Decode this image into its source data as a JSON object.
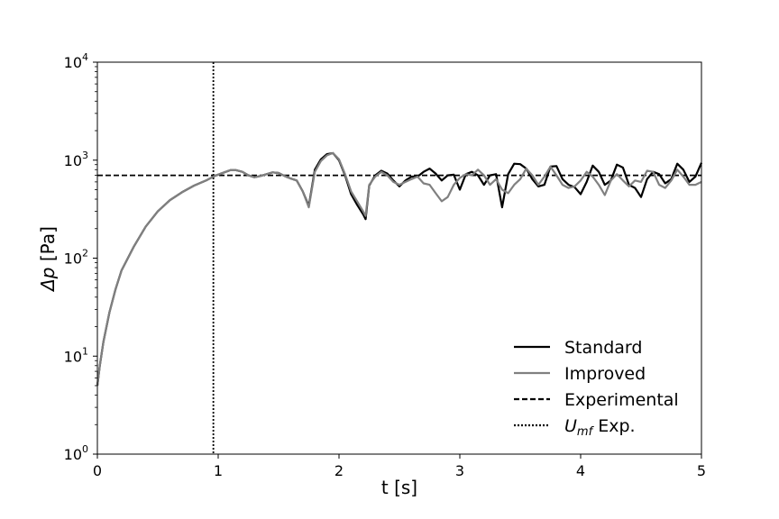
{
  "chart_data": {
    "type": "line",
    "title": "",
    "xlabel": "t [s]",
    "ylabel_prefix": "Δp",
    "ylabel_suffix": " [Pa]",
    "xlim": [
      0,
      5
    ],
    "ylim": [
      1,
      10000
    ],
    "yscale": "log",
    "grid": false,
    "legend_position": "lower-right",
    "x_ticks": [
      {
        "value": 0,
        "label": "0"
      },
      {
        "value": 1,
        "label": "1"
      },
      {
        "value": 2,
        "label": "2"
      },
      {
        "value": 3,
        "label": "3"
      },
      {
        "value": 4,
        "label": "4"
      },
      {
        "value": 5,
        "label": "5"
      }
    ],
    "y_ticks": [
      {
        "value": 1,
        "base": "10",
        "exp": "0"
      },
      {
        "value": 10,
        "base": "10",
        "exp": "1"
      },
      {
        "value": 100,
        "base": "10",
        "exp": "2"
      },
      {
        "value": 1000,
        "base": "10",
        "exp": "3"
      },
      {
        "value": 10000,
        "base": "10",
        "exp": "4"
      }
    ],
    "series": [
      {
        "name": "Standard",
        "style": "solid",
        "color": "#000000",
        "x": [
          0,
          0.02,
          0.05,
          0.1,
          0.15,
          0.2,
          0.3,
          0.4,
          0.5,
          0.6,
          0.7,
          0.8,
          0.9,
          0.97,
          1.05,
          1.1,
          1.15,
          1.2,
          1.25,
          1.3,
          1.35,
          1.4,
          1.45,
          1.5,
          1.55,
          1.6,
          1.65,
          1.7,
          1.75,
          1.8,
          1.85,
          1.9,
          1.95,
          2.0,
          2.05,
          2.1,
          2.15,
          2.2,
          2.22,
          2.25,
          2.3,
          2.35,
          2.4,
          2.45,
          2.5,
          2.55,
          2.6,
          2.65,
          2.7,
          2.75,
          2.8,
          2.85,
          2.9,
          2.95,
          3.0,
          3.05,
          3.1,
          3.15,
          3.2,
          3.25,
          3.3,
          3.35,
          3.4,
          3.45,
          3.5,
          3.55,
          3.6,
          3.65,
          3.7,
          3.75,
          3.8,
          3.85,
          3.9,
          3.95,
          4.0,
          4.05,
          4.1,
          4.15,
          4.2,
          4.25,
          4.3,
          4.35,
          4.4,
          4.45,
          4.5,
          4.55,
          4.6,
          4.65,
          4.7,
          4.75,
          4.8,
          4.85,
          4.9,
          4.95,
          5.0
        ],
        "y": [
          5,
          8,
          14,
          28,
          48,
          75,
          130,
          210,
          300,
          390,
          470,
          550,
          620,
          690,
          750,
          790,
          790,
          760,
          700,
          670,
          690,
          720,
          750,
          740,
          690,
          650,
          620,
          480,
          340,
          800,
          1020,
          1150,
          1180,
          1000,
          700,
          450,
          350,
          280,
          250,
          550,
          700,
          780,
          730,
          620,
          540,
          620,
          680,
          680,
          760,
          820,
          730,
          620,
          700,
          710,
          500,
          720,
          760,
          700,
          560,
          700,
          720,
          330,
          720,
          920,
          910,
          820,
          640,
          540,
          560,
          860,
          870,
          640,
          560,
          530,
          450,
          600,
          880,
          760,
          560,
          620,
          900,
          840,
          560,
          520,
          420,
          640,
          760,
          720,
          580,
          640,
          920,
          800,
          600,
          680,
          940
        ]
      },
      {
        "name": "Improved",
        "style": "solid",
        "color": "#808080",
        "x": [
          0,
          0.02,
          0.05,
          0.1,
          0.15,
          0.2,
          0.3,
          0.4,
          0.5,
          0.6,
          0.7,
          0.8,
          0.9,
          0.97,
          1.05,
          1.1,
          1.15,
          1.2,
          1.25,
          1.3,
          1.35,
          1.4,
          1.45,
          1.5,
          1.55,
          1.6,
          1.65,
          1.7,
          1.75,
          1.8,
          1.85,
          1.9,
          1.95,
          2.0,
          2.05,
          2.1,
          2.15,
          2.2,
          2.22,
          2.25,
          2.3,
          2.35,
          2.4,
          2.45,
          2.5,
          2.55,
          2.6,
          2.65,
          2.7,
          2.75,
          2.8,
          2.85,
          2.9,
          2.95,
          3.0,
          3.05,
          3.1,
          3.15,
          3.2,
          3.25,
          3.3,
          3.35,
          3.4,
          3.45,
          3.5,
          3.55,
          3.6,
          3.65,
          3.7,
          3.75,
          3.8,
          3.85,
          3.9,
          3.95,
          4.0,
          4.05,
          4.1,
          4.15,
          4.2,
          4.25,
          4.3,
          4.35,
          4.4,
          4.45,
          4.5,
          4.55,
          4.6,
          4.65,
          4.7,
          4.75,
          4.8,
          4.85,
          4.9,
          4.95,
          5.0
        ],
        "y": [
          5,
          8,
          14,
          28,
          48,
          75,
          130,
          210,
          300,
          390,
          470,
          550,
          620,
          690,
          750,
          790,
          790,
          760,
          700,
          670,
          690,
          720,
          750,
          740,
          690,
          650,
          620,
          480,
          330,
          760,
          980,
          1120,
          1180,
          1020,
          720,
          480,
          380,
          300,
          270,
          560,
          680,
          760,
          700,
          600,
          560,
          600,
          640,
          680,
          580,
          560,
          460,
          380,
          420,
          560,
          660,
          720,
          700,
          800,
          700,
          560,
          640,
          500,
          460,
          560,
          640,
          820,
          700,
          560,
          680,
          860,
          700,
          560,
          520,
          540,
          620,
          760,
          680,
          560,
          440,
          620,
          720,
          620,
          540,
          620,
          600,
          780,
          760,
          560,
          520,
          620,
          800,
          680,
          560,
          560,
          600
        ]
      }
    ],
    "reference_lines": [
      {
        "name": "Experimental",
        "orientation": "horizontal",
        "style": "dashed",
        "value": 700
      },
      {
        "name": "Umf Exp.",
        "orientation": "vertical",
        "style": "dotted",
        "value": 0.96
      }
    ],
    "legend": [
      {
        "label": "Standard",
        "style": "solid",
        "color": "#000000"
      },
      {
        "label": "Improved",
        "style": "solid",
        "color": "#808080"
      },
      {
        "label": "Experimental",
        "style": "dashed",
        "color": "#000000"
      },
      {
        "label_math": "U",
        "label_sub": "mf",
        "label_rest": " Exp.",
        "style": "dotted",
        "color": "#000000"
      }
    ]
  }
}
